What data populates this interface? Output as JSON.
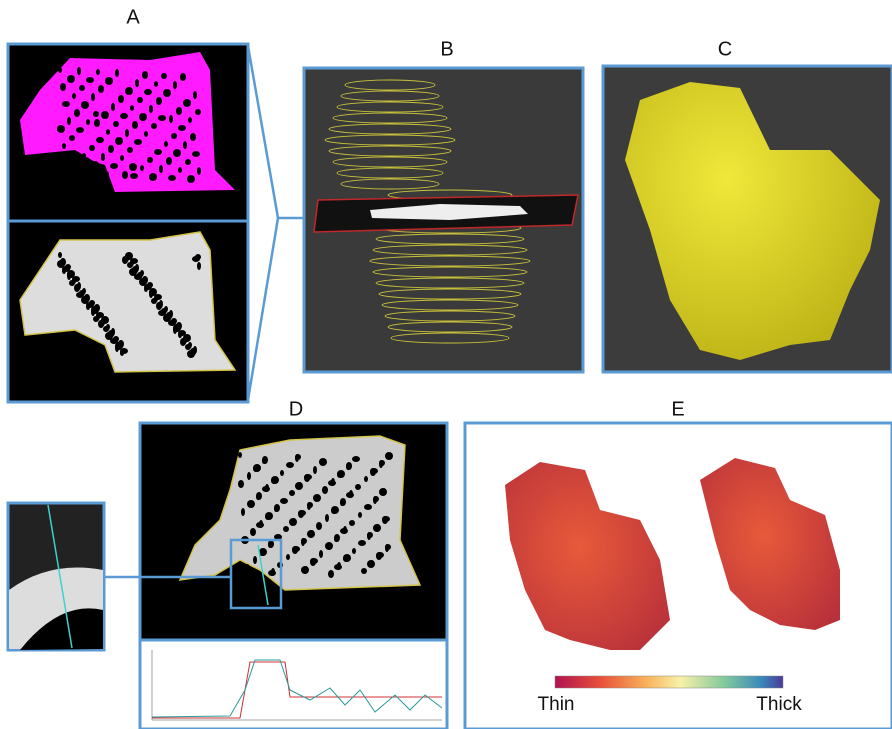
{
  "panels": {
    "a": {
      "label": "A"
    },
    "b": {
      "label": "B"
    },
    "c": {
      "label": "C"
    },
    "d": {
      "label": "D"
    },
    "e": {
      "label": "E"
    }
  },
  "colorbar": {
    "min_label": "Thin",
    "max_label": "Thick"
  }
}
